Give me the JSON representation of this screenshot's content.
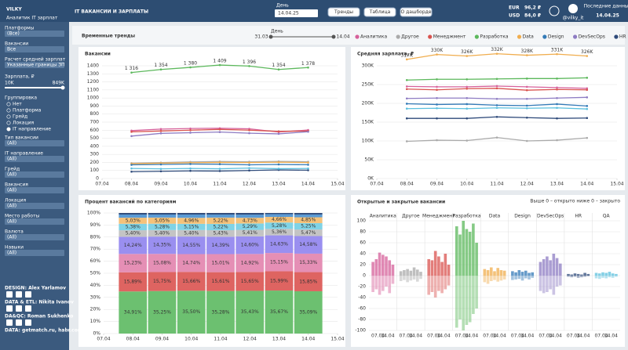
{
  "header": {
    "logo": "VILKY",
    "logo_subtitle": "Аналитик IT зарплат",
    "title": "IT ВАКАНСИИ И ЗАРПЛАТЫ",
    "date_label": "День",
    "date_value": "14.04.25",
    "buttons": [
      "Тренды",
      "Таблица",
      "О дашборде"
    ],
    "eur": "EUR",
    "eur_value": "96,2 ₽",
    "usd": "USD",
    "usd_value": "84,0 ₽",
    "telegram": "@vilky_it",
    "last_data_label": "Последние данные",
    "last_data_date": "14.04.25"
  },
  "sidebar": {
    "filters": [
      {
        "label": "Платформы",
        "value": "(Все)"
      },
      {
        "label": "Вакансии",
        "value": "Все"
      },
      {
        "label": "Расчет средней зарплат",
        "value": "Указанные границы ЗП"
      }
    ],
    "salary": {
      "label": "Зарплата, ₽",
      "min": "10K",
      "max": "849K"
    },
    "grouping": {
      "label": "Группировка",
      "options": [
        "Нет",
        "Платформа",
        "Грейд",
        "Локация",
        "IT направление"
      ],
      "selected": 4
    },
    "filters2": [
      {
        "label": "Тип вакансии",
        "value": "(All)"
      },
      {
        "label": "IT направление",
        "value": "(All)"
      },
      {
        "label": "Грейд",
        "value": "(All)"
      },
      {
        "label": "Вакансия",
        "value": "(All)"
      },
      {
        "label": "Локация",
        "value": "(All)"
      },
      {
        "label": "Место работы",
        "value": "(All)"
      },
      {
        "label": "Валюта",
        "value": "(All)"
      },
      {
        "label": "Навыки",
        "value": "(All)"
      }
    ],
    "credits": [
      "DESIGN: Alex Yarlamov",
      "DATA & ETL: Nikita Ivanov",
      "DA&QC: Roman Sukhenko",
      "DATA: getmatch.ru, habr.com, geekjob.ru"
    ]
  },
  "section": {
    "title": "Временные тренды",
    "slider_label": "День",
    "slider_from": "31.03",
    "slider_to": "14.04"
  },
  "chart_data": [
    {
      "type": "line",
      "title": "Вакансии",
      "x": [
        "08.04",
        "09.04",
        "10.04",
        "11.04",
        "12.04",
        "13.04",
        "14.04"
      ],
      "xticks": [
        "07.04",
        "08.04",
        "09.04",
        "10.04",
        "11.04",
        "12.04",
        "13.04",
        "14.04",
        "15.04"
      ],
      "ylim": [
        0,
        1400
      ],
      "yticks": [
        0,
        100,
        200,
        300,
        400,
        500,
        600,
        700,
        800,
        900,
        1000,
        1100,
        1200,
        1300,
        1400
      ],
      "grid": true,
      "series": [
        {
          "name": "Аналитика",
          "color": "#d6609a",
          "values": [
            595,
            614,
            621,
            624,
            617,
            577,
            602
          ]
        },
        {
          "name": "Другое",
          "color": "#aaaaaa",
          "values": [
            190,
            198,
            206,
            211,
            208,
            213,
            208
          ]
        },
        {
          "name": "Менеджмент",
          "color": "#d9534f",
          "values": [
            580,
            590,
            600,
            610,
            600,
            585,
            590
          ]
        },
        {
          "name": "Разработка",
          "color": "#5cb85c",
          "values": [
            1316,
            1354,
            1380,
            1409,
            1396,
            1354,
            1378
          ],
          "value_labels": [
            "1 316",
            "1 354",
            "1 380",
            "1 409",
            "1 396",
            "1 354",
            "1 378"
          ]
        },
        {
          "name": "Data",
          "color": "#f0ad4e",
          "values": [
            184,
            190,
            196,
            200,
            198,
            203,
            198
          ]
        },
        {
          "name": "Design",
          "color": "#337ab7",
          "values": [
            170,
            175,
            180,
            178,
            170,
            175,
            171
          ]
        },
        {
          "name": "DevSecOps",
          "color": "#8e7cc3",
          "values": [
            527,
            561,
            569,
            577,
            563,
            555,
            581
          ]
        },
        {
          "name": "HR",
          "color": "#2e4a7a",
          "values": [
            85,
            90,
            95,
            93,
            100,
            107,
            103
          ]
        },
        {
          "name": "QA",
          "color": "#5bc0de",
          "values": [
            125,
            120,
            125,
            121,
            130,
            122,
            125
          ]
        }
      ]
    },
    {
      "type": "line",
      "title": "Средняя зарплата, ₽",
      "x": [
        "08.04",
        "09.04",
        "10.04",
        "11.04",
        "12.04",
        "13.04",
        "14.04"
      ],
      "xticks": [
        "07.04",
        "08.04",
        "09.04",
        "10.04",
        "11.04",
        "12.04",
        "13.04",
        "14.04",
        "15.04"
      ],
      "ylim": [
        0,
        300000
      ],
      "yticks": [
        {
          "value": 0,
          "label": "0K"
        },
        {
          "value": 50000,
          "label": "50K"
        },
        {
          "value": 100000,
          "label": "100K"
        },
        {
          "value": 150000,
          "label": "150K"
        },
        {
          "value": 200000,
          "label": "200K"
        },
        {
          "value": 250000,
          "label": "250K"
        },
        {
          "value": 300000,
          "label": "300K"
        }
      ],
      "grid": true,
      "series": [
        {
          "name": "Аналитика",
          "color": "#d6609a",
          "values": [
            245000,
            244000,
            244000,
            246000,
            244000,
            242000,
            240000
          ]
        },
        {
          "name": "Другое",
          "color": "#aaaaaa",
          "values": [
            99000,
            102000,
            101000,
            109000,
            100000,
            102000,
            108000
          ]
        },
        {
          "name": "Менеджмент",
          "color": "#d9534f",
          "values": [
            238000,
            236000,
            239000,
            240000,
            235000,
            237000,
            236000
          ]
        },
        {
          "name": "Разработка",
          "color": "#5cb85c",
          "values": [
            262000,
            264000,
            264000,
            265000,
            266000,
            266000,
            268000
          ]
        },
        {
          "name": "Data",
          "color": "#f0ad4e",
          "values": [
            317000,
            330000,
            326000,
            332000,
            328000,
            331000,
            326000
          ],
          "value_labels": [
            "317K",
            "330K",
            "326K",
            "332K",
            "328K",
            "331K",
            "326K"
          ]
        },
        {
          "name": "Design",
          "color": "#337ab7",
          "values": [
            199000,
            197000,
            198000,
            195000,
            194000,
            198000,
            193000
          ]
        },
        {
          "name": "DevSecOps",
          "color": "#8e7cc3",
          "values": [
            213000,
            214000,
            214000,
            212000,
            212000,
            214000,
            216000
          ]
        },
        {
          "name": "HR",
          "color": "#2e4a7a",
          "values": [
            160000,
            160000,
            160000,
            164000,
            162000,
            160000,
            161000
          ]
        },
        {
          "name": "QA",
          "color": "#5bc0de",
          "values": [
            186000,
            187000,
            186000,
            188000,
            187000,
            188000,
            185000
          ]
        }
      ]
    },
    {
      "type": "stacked",
      "title": "Процент вакансий по категориям",
      "x": [
        "08.04",
        "09.04",
        "10.04",
        "11.04",
        "12.04",
        "13.04",
        "14.04"
      ],
      "xticks": [
        "07.04",
        "08.04",
        "09.04",
        "10.04",
        "11.04",
        "12.04",
        "13.04",
        "14.04",
        "15.04"
      ],
      "ylim": [
        0,
        100
      ],
      "yticks": [
        {
          "value": 0,
          "label": "0%"
        },
        {
          "value": 10,
          "label": "10%"
        },
        {
          "value": 20,
          "label": "20%"
        },
        {
          "value": 30,
          "label": "30%"
        },
        {
          "value": 40,
          "label": "40%"
        },
        {
          "value": 50,
          "label": "50%"
        },
        {
          "value": 60,
          "label": "60%"
        },
        {
          "value": 70,
          "label": "70%"
        },
        {
          "value": 80,
          "label": "80%"
        },
        {
          "value": 90,
          "label": "90%"
        },
        {
          "value": 100,
          "label": "100%"
        }
      ],
      "grid": true,
      "series": [
        {
          "name": "Разработка",
          "color": "#6cc070",
          "values": [
            34.91,
            35.25,
            35.5,
            35.28,
            35.43,
            35.67,
            35.09
          ],
          "value_labels": [
            "34,91%",
            "35,25%",
            "35,50%",
            "35,28%",
            "35,43%",
            "35,67%",
            "35,09%"
          ]
        },
        {
          "name": "Менеджмент",
          "color": "#de6461",
          "values": [
            15.89,
            15.75,
            15.66,
            15.61,
            15.65,
            15.99,
            15.85
          ],
          "value_labels": [
            "15,89%",
            "15,75%",
            "15,66%",
            "15,61%",
            "15,65%",
            "15,99%",
            "15,85%"
          ]
        },
        {
          "name": "Аналитика",
          "color": "#e58fb5",
          "values": [
            15.23,
            15.08,
            14.74,
            15.01,
            14.92,
            15.15,
            15.33
          ],
          "value_labels": [
            "15,23%",
            "15,08%",
            "14,74%",
            "15,01%",
            "14,92%",
            "15,15%",
            "15,33%"
          ]
        },
        {
          "name": "DevSecOps",
          "color": "#9a8ff0",
          "values": [
            14.24,
            14.35,
            14.55,
            14.39,
            14.6,
            14.63,
            14.58
          ],
          "value_labels": [
            "14,24%",
            "14,35%",
            "14,55%",
            "14,39%",
            "14,60%",
            "14,63%",
            "14,58%"
          ]
        },
        {
          "name": "Другое",
          "color": "#c4c4c4",
          "values": [
            5.4,
            5.4,
            5.4,
            5.43,
            5.41,
            5.36,
            5.47
          ],
          "value_labels": [
            "5,40%",
            "5,40%",
            "5,40%",
            "5,43%",
            "5,41%",
            "5,36%",
            "5,47%"
          ]
        },
        {
          "name": "QA",
          "color": "#7fd3e6",
          "values": [
            5.38,
            5.28,
            5.15,
            5.22,
            5.29,
            5.28,
            5.25
          ],
          "value_labels": [
            "5,38%",
            "5,28%",
            "5,15%",
            "5,22%",
            "5,29%",
            "5,28%",
            "5,25%"
          ]
        },
        {
          "name": "Data",
          "color": "#f5c27a",
          "values": [
            5.03,
            5.05,
            4.96,
            5.22,
            4.73,
            4.66,
            4.85
          ],
          "value_labels": [
            "5,03%",
            "5,05%",
            "4,96%",
            "5,22%",
            "4,73%",
            "4,66%",
            "4,85%"
          ]
        },
        {
          "name": "Design",
          "color": "#5a9bd5",
          "values": [
            2.64,
            2.56,
            2.76,
            2.56,
            2.6,
            2.31,
            2.33
          ]
        },
        {
          "name": "HR",
          "color": "#2e4a7a",
          "values": [
            1.28,
            1.28,
            1.28,
            1.28,
            1.37,
            0.95,
            1.25
          ]
        }
      ]
    },
    {
      "type": "small-multiples",
      "title": "Открытые и закрытые вакансии",
      "subtitle": "Выше 0 – открыто ниже 0 – закрыто",
      "xticks": [
        "07.04",
        "14.04"
      ],
      "ylim": [
        -100,
        100
      ],
      "yticks": [
        -100,
        -80,
        -60,
        -40,
        -20,
        0,
        20,
        40,
        60,
        80,
        100
      ],
      "grid": true,
      "series": [
        {
          "name": "Аналитика",
          "color": "#d6609a",
          "values": [
            25,
            30,
            42,
            38,
            35,
            28,
            20
          ],
          "closed": [
            -30,
            -25,
            -35,
            -28,
            -20,
            -32,
            -15
          ]
        },
        {
          "name": "Другое",
          "color": "#aaaaaa",
          "values": [
            8,
            10,
            12,
            9,
            15,
            11,
            7
          ],
          "closed": [
            -10,
            -8,
            -12,
            -9,
            -7,
            -11,
            -6
          ]
        },
        {
          "name": "Менеджмент",
          "color": "#d9534f",
          "values": [
            30,
            28,
            45,
            35,
            25,
            40,
            20
          ],
          "closed": [
            -35,
            -30,
            -40,
            -28,
            -32,
            -25,
            -18
          ]
        },
        {
          "name": "Разработка",
          "color": "#5cb85c",
          "values": [
            90,
            75,
            100,
            85,
            80,
            95,
            60
          ],
          "closed": [
            -95,
            -80,
            -100,
            -90,
            -85,
            -70,
            -60
          ]
        },
        {
          "name": "Data",
          "color": "#f0ad4e",
          "values": [
            12,
            10,
            15,
            8,
            14,
            10,
            9
          ],
          "closed": [
            -12,
            -15,
            -10,
            -8,
            -11,
            -9,
            -7
          ]
        },
        {
          "name": "Design",
          "color": "#337ab7",
          "values": [
            8,
            6,
            10,
            7,
            9,
            5,
            6
          ],
          "closed": [
            -8,
            -7,
            -6,
            -9,
            -5,
            -7,
            -4
          ]
        },
        {
          "name": "DevSecOps",
          "color": "#8e7cc3",
          "values": [
            25,
            30,
            35,
            28,
            40,
            32,
            22
          ],
          "closed": [
            -28,
            -32,
            -30,
            -25,
            -35,
            -20,
            -18
          ]
        },
        {
          "name": "HR",
          "color": "#2e4a7a",
          "values": [
            3,
            2,
            4,
            3,
            2,
            5,
            3
          ],
          "closed": [
            -2,
            -3,
            -2,
            -4,
            -3,
            -2,
            -1
          ]
        },
        {
          "name": "QA",
          "color": "#5bc0de",
          "values": [
            5,
            4,
            6,
            5,
            7,
            4,
            3
          ],
          "closed": [
            -5,
            -6,
            -4,
            -5,
            -3,
            -4,
            -2
          ]
        }
      ]
    }
  ]
}
